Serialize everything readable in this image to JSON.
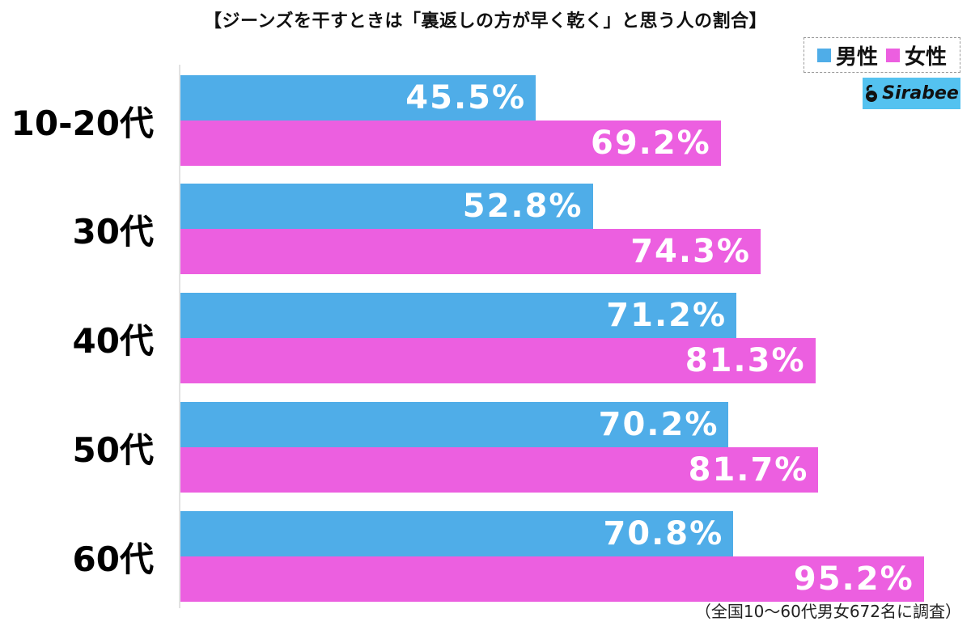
{
  "title": "【ジーンズを干すときは「裏返しの方が早く乾く」と思う人の割合】",
  "legend": {
    "male": "男性",
    "female": "女性"
  },
  "colors": {
    "male": "#4fade8",
    "female": "#ec5fe0",
    "logo_bg": "#54c2f0"
  },
  "logo": {
    "text": "Sirabee"
  },
  "footnote": "（全国10〜60代男女672名に調査）",
  "chart_data": {
    "type": "bar",
    "orientation": "horizontal",
    "title": "【ジーンズを干すときは「裏返しの方が早く乾く」と思う人の割合】",
    "categories": [
      "10-20代",
      "30代",
      "40代",
      "50代",
      "60代"
    ],
    "series": [
      {
        "name": "男性",
        "values": [
          45.5,
          52.8,
          71.2,
          70.2,
          70.8
        ]
      },
      {
        "name": "女性",
        "values": [
          69.2,
          74.3,
          81.3,
          81.7,
          95.2
        ]
      }
    ],
    "value_labels": {
      "男性": [
        "45.5%",
        "52.8%",
        "71.2%",
        "70.2%",
        "70.8%"
      ],
      "女性": [
        "69.2%",
        "74.3%",
        "81.3%",
        "81.7%",
        "95.2%"
      ]
    },
    "xlabel": "",
    "ylabel": "",
    "xlim": [
      0,
      100
    ],
    "grid": false,
    "legend_position": "top-right",
    "annotation": "（全国10〜60代男女672名に調査）"
  }
}
